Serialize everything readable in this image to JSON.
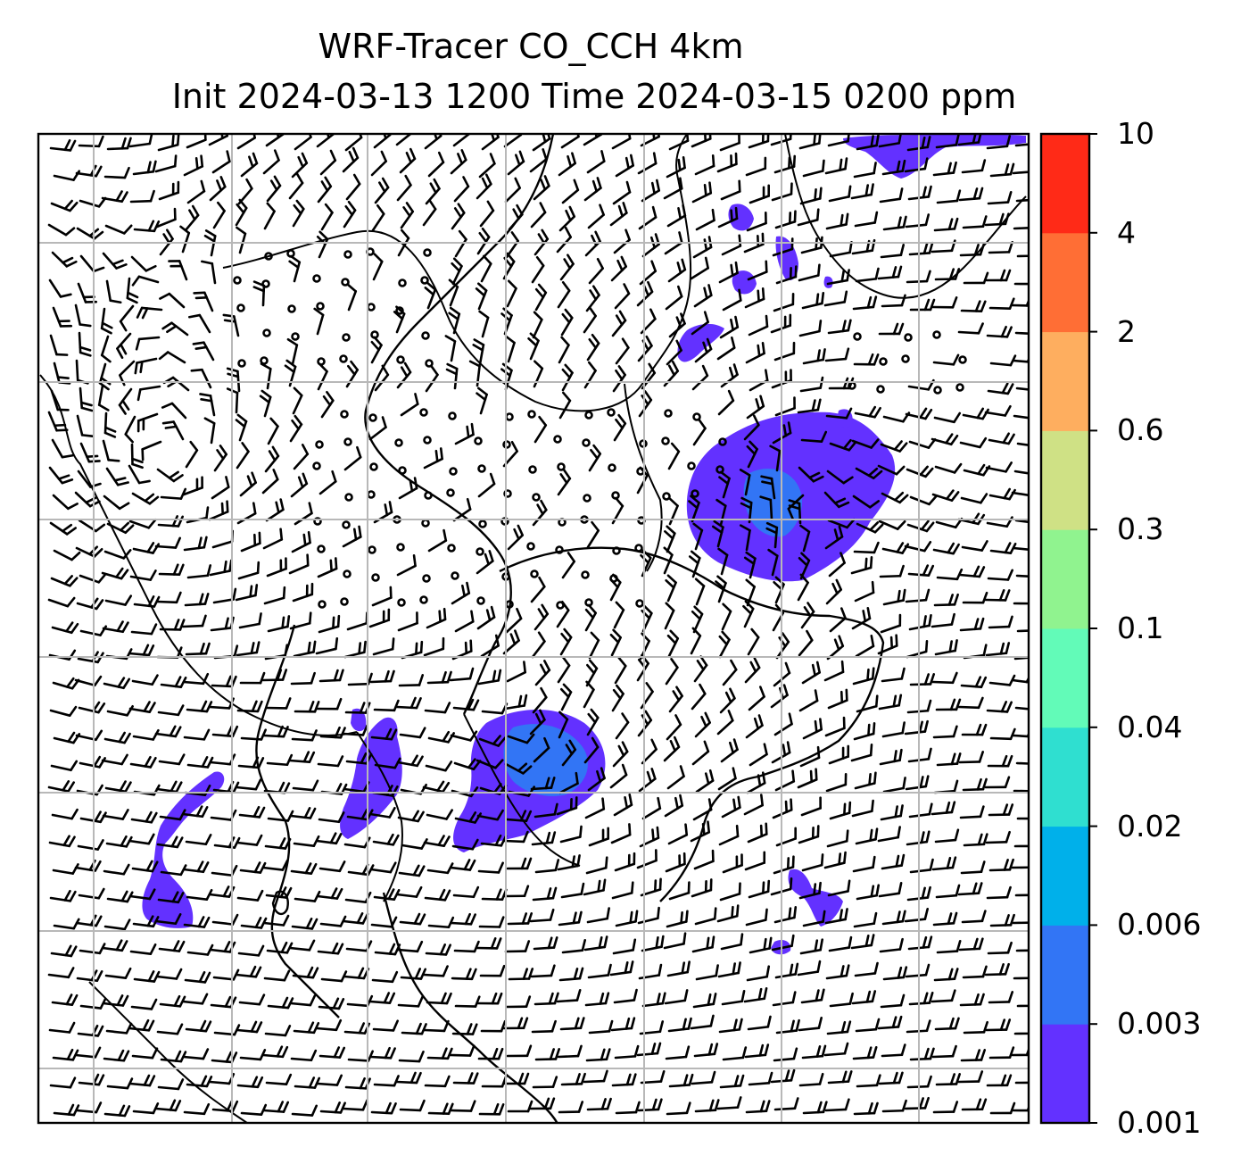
{
  "title": {
    "line1": "WRF-Tracer CO_CCH 4km",
    "line2": "Init 2024-03-13 1200 Time 2024-03-15 0200 ppm"
  },
  "colorbar": {
    "levels": [
      "0.001",
      "0.003",
      "0.006",
      "0.02",
      "0.04",
      "0.1",
      "0.3",
      "0.6",
      "2",
      "4",
      "10"
    ],
    "colors": [
      "#6331ff",
      "#3275f5",
      "#00b0ea",
      "#2fdfd0",
      "#62fbb8",
      "#90f38f",
      "#cfe185",
      "#feae5f",
      "#ff6e35",
      "#ff2a17"
    ]
  },
  "map": {
    "gridlines": true,
    "features": [
      "coastlines",
      "country-borders",
      "wind-barbs",
      "tracer-plumes"
    ]
  }
}
